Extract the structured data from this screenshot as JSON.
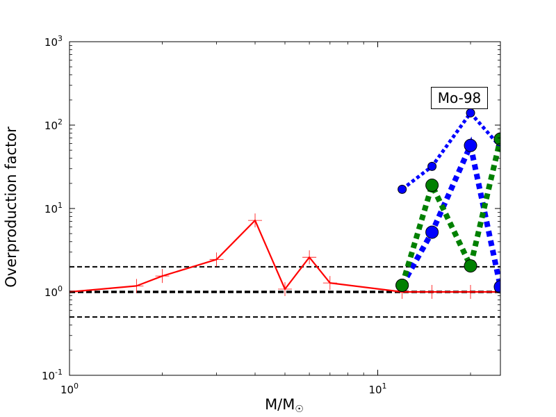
{
  "chart_data": {
    "type": "line",
    "title": "",
    "xlabel_main": "M/M",
    "xlabel_sub": "☉",
    "ylabel": "Overproduction factor",
    "xscale": "log",
    "yscale": "log",
    "xlim": [
      1,
      25
    ],
    "ylim": [
      0.1,
      1000
    ],
    "x_ticks": [
      {
        "value": 1,
        "base": "10",
        "exp": "0"
      },
      {
        "value": 10,
        "base": "10",
        "exp": "1"
      }
    ],
    "y_ticks": [
      {
        "value": 0.1,
        "base": "10",
        "exp": "-1"
      },
      {
        "value": 1,
        "base": "10",
        "exp": "0"
      },
      {
        "value": 10,
        "base": "10",
        "exp": "1"
      },
      {
        "value": 100,
        "base": "10",
        "exp": "2"
      },
      {
        "value": 1000,
        "base": "10",
        "exp": "3"
      }
    ],
    "grid": false,
    "annotation": "Mo-98",
    "hlines": [
      {
        "y": 2.0,
        "style": "dashed",
        "weight": "thin"
      },
      {
        "y": 1.0,
        "style": "dashed",
        "weight": "thick"
      },
      {
        "y": 0.5,
        "style": "dashed",
        "weight": "thin"
      }
    ],
    "series": [
      {
        "color": "#ff0000",
        "line": "solid",
        "marker": "plus",
        "x": [
          1.0,
          1.65,
          2.0,
          3.0,
          4.0,
          5.0,
          6.0,
          7.0,
          12.0,
          15.0,
          20.0,
          25.0
        ],
        "y": [
          1.0,
          1.18,
          1.55,
          2.45,
          7.2,
          1.08,
          2.6,
          1.28,
          1.0,
          1.0,
          1.0,
          1.0
        ]
      },
      {
        "color": "#0000ff",
        "line": "dotted",
        "marker": "circle",
        "marker_size": 6,
        "line_width": 5,
        "x": [
          12.0,
          15.0,
          20.0,
          25.0
        ],
        "y": [
          17.0,
          32.0,
          140.0,
          55.0
        ]
      },
      {
        "color": "#0000ff",
        "line": "dotted",
        "marker": "circle",
        "marker_size": 9,
        "line_width": 8,
        "x": [
          12.0,
          15.0,
          20.0,
          25.0
        ],
        "y": [
          1.2,
          5.2,
          57.0,
          1.15
        ]
      },
      {
        "color": "#008000",
        "line": "dotted",
        "marker": "circle",
        "marker_size": 9,
        "line_width": 8,
        "x": [
          12.0,
          15.0,
          20.0,
          25.0
        ],
        "y": [
          1.2,
          19.0,
          2.05,
          68.0
        ]
      }
    ]
  }
}
